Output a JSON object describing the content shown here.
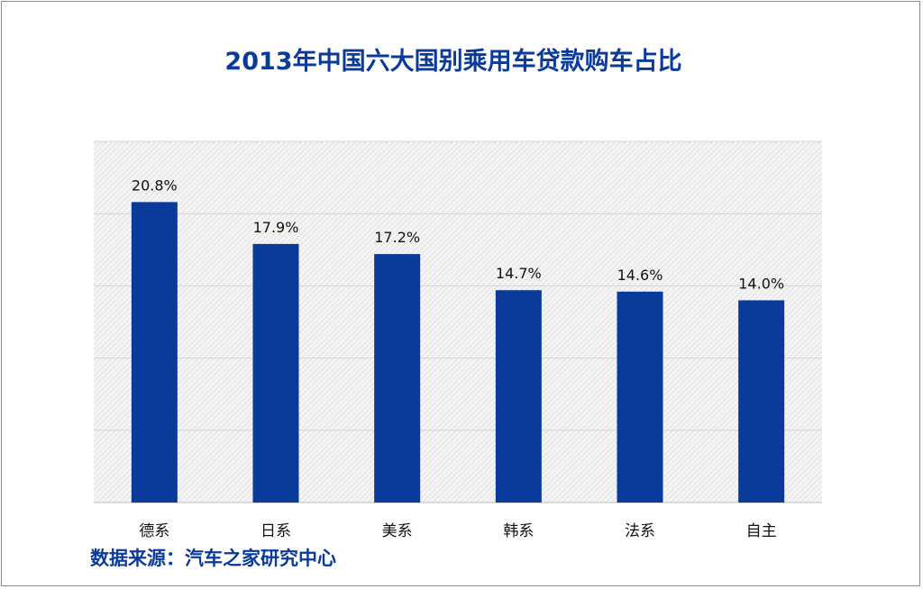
{
  "chart_data": {
    "type": "bar",
    "title": "2013年中国六大国别乘用车贷款购车占比",
    "categories": [
      "德系",
      "日系",
      "美系",
      "韩系",
      "法系",
      "自主"
    ],
    "values": [
      20.8,
      17.9,
      17.2,
      14.7,
      14.6,
      14.0
    ],
    "value_labels": [
      "20.8%",
      "17.9%",
      "17.2%",
      "14.7%",
      "14.6%",
      "14.0%"
    ],
    "ylim": [
      0,
      25
    ],
    "grid": true,
    "bar_color": "#0a3a9a",
    "xlabel": "",
    "ylabel": ""
  },
  "source": "数据来源：汽车之家研究中心"
}
